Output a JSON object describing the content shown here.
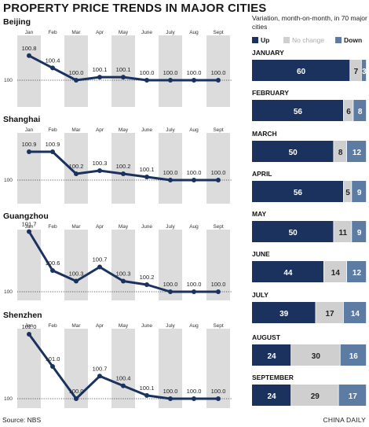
{
  "title": "PROPERTY PRICE TRENDS IN MAJOR CITIES",
  "legend": {
    "description": "Variation, month-on-month, in 70 major cities",
    "items": [
      {
        "label": "Up",
        "color": "#1b325f"
      },
      {
        "label": "No change",
        "color": "#cfcfcf"
      },
      {
        "label": "Down",
        "color": "#5d7ca3"
      }
    ]
  },
  "source": "Source: NBS",
  "credit": "CHINA DAILY",
  "chart_data": [
    {
      "type": "line",
      "title": "Beijing",
      "x": [
        "Jan",
        "Feb",
        "Mar",
        "Apr",
        "May",
        "June",
        "July",
        "Aug",
        "Sept"
      ],
      "values": [
        100.8,
        100.4,
        100.0,
        100.1,
        100.1,
        100.0,
        100.0,
        100.0,
        100.0
      ],
      "value_labels": [
        "100.8",
        "100.4",
        "100.0",
        "100.1",
        "100.1",
        "100.0",
        "100.0",
        "100.0",
        "100.0"
      ],
      "baseline": 100,
      "baseline_label": "100",
      "ylim": [
        100,
        101
      ]
    },
    {
      "type": "line",
      "title": "Shanghai",
      "x": [
        "Jan",
        "Feb",
        "Mar",
        "Apr",
        "May",
        "June",
        "July",
        "Aug",
        "Sept"
      ],
      "values": [
        100.9,
        100.9,
        100.2,
        100.3,
        100.2,
        100.1,
        100.0,
        100.0,
        100.0
      ],
      "value_labels": [
        "100.9",
        "100.9",
        "100.2",
        "100.3",
        "100.2",
        "100.1",
        "100.0",
        "100.0",
        "100.0"
      ],
      "baseline": 100,
      "baseline_label": "100",
      "ylim": [
        100,
        101
      ]
    },
    {
      "type": "line",
      "title": "Guangzhou",
      "x": [
        "Jan",
        "Feb",
        "Mar",
        "Apr",
        "May",
        "June",
        "July",
        "Aug",
        "Sept"
      ],
      "values": [
        101.7,
        100.6,
        100.3,
        100.7,
        100.3,
        100.2,
        100.0,
        100.0,
        100.0
      ],
      "value_labels": [
        "101.7",
        "100.6",
        "100.3",
        "100.7",
        "100.3",
        "100.2",
        "100.0",
        "100.0",
        "100.0"
      ],
      "baseline": 100,
      "baseline_label": "100",
      "ylim": [
        100,
        101.7
      ]
    },
    {
      "type": "line",
      "title": "Shenzhen",
      "x": [
        "Jan",
        "Feb",
        "Mar",
        "Apr",
        "May",
        "June",
        "July",
        "Aug",
        "Sept"
      ],
      "values": [
        102.0,
        101.0,
        100.0,
        100.7,
        100.4,
        100.1,
        100.0,
        100.0,
        100.0
      ],
      "value_labels": [
        "102.0",
        "101.0",
        "100.0",
        "100.7",
        "100.4",
        "100.1",
        "100.0",
        "100.0",
        "100.0"
      ],
      "baseline": 100,
      "baseline_label": "100",
      "ylim": [
        100,
        102
      ]
    },
    {
      "type": "bar",
      "stacked": true,
      "orientation": "horizontal",
      "categories": [
        "JANUARY",
        "FEBRUARY",
        "MARCH",
        "APRIL",
        "MAY",
        "JUNE",
        "JULY",
        "AUGUST",
        "SEPTEMBER"
      ],
      "series": [
        {
          "name": "Up",
          "values": [
            60,
            56,
            50,
            56,
            50,
            44,
            39,
            24,
            24
          ]
        },
        {
          "name": "No change",
          "values": [
            7,
            6,
            8,
            5,
            11,
            14,
            17,
            30,
            29
          ]
        },
        {
          "name": "Down",
          "values": [
            3,
            8,
            12,
            9,
            9,
            12,
            14,
            16,
            17
          ]
        }
      ],
      "total": 70
    }
  ]
}
